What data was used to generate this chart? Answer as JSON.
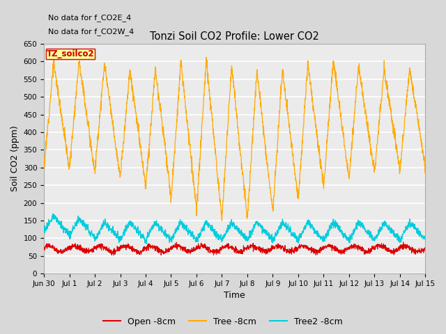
{
  "title": "Tonzi Soil CO2 Profile: Lower CO2",
  "xlabel": "Time",
  "ylabel": "Soil CO2 (ppm)",
  "annotations": [
    "No data for f_CO2E_4",
    "No data for f_CO2W_4"
  ],
  "legend_label": "TZ_soilco2",
  "legend_entries": [
    "Open -8cm",
    "Tree -8cm",
    "Tree2 -8cm"
  ],
  "legend_colors": [
    "#dd0000",
    "#ffaa00",
    "#00ccdd"
  ],
  "ylim": [
    0,
    650
  ],
  "yticks": [
    0,
    50,
    100,
    150,
    200,
    250,
    300,
    350,
    400,
    450,
    500,
    550,
    600,
    650
  ],
  "bg_color": "#d8d8d8",
  "plot_bg_color": "#ebebeb",
  "grid_color": "#ffffff",
  "num_points": 2000
}
